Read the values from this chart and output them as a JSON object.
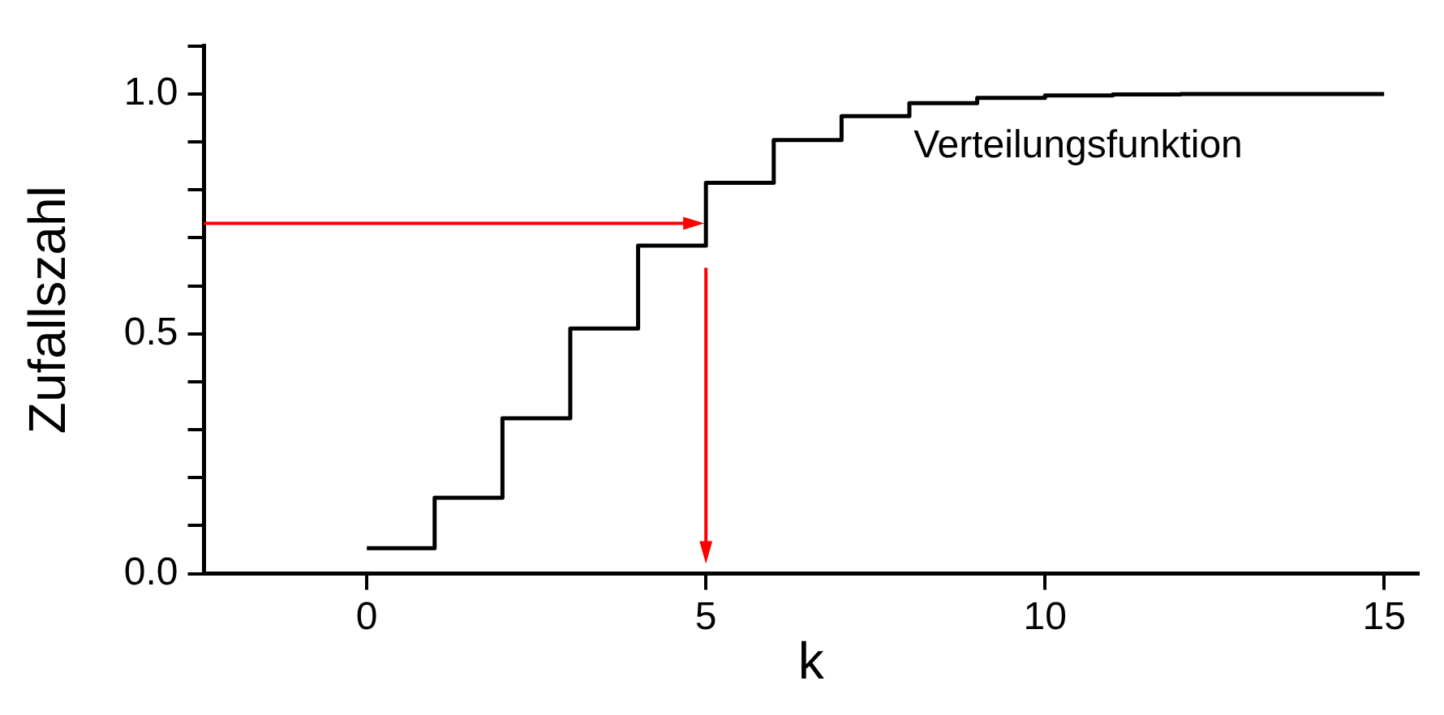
{
  "chart_data": {
    "type": "step",
    "xlabel": "k",
    "ylabel": "Zufallszahl",
    "annotations": [
      "Verteilungsfunktion"
    ],
    "x": [
      0,
      1,
      2,
      3,
      4,
      5,
      6,
      7,
      8,
      9,
      10,
      11,
      12,
      13,
      14,
      15
    ],
    "series": [
      {
        "color": "#000000",
        "values": [
          0.053,
          0.158,
          0.324,
          0.511,
          0.684,
          0.815,
          0.904,
          0.954,
          0.981,
          0.992,
          0.997,
          0.999,
          1.0,
          1.0,
          1.0,
          1.0
        ]
      }
    ],
    "xlim": [
      -2.4,
      15.5
    ],
    "xticks": [
      0,
      5,
      10,
      15
    ],
    "ylim": [
      0,
      1.1
    ],
    "yticks": [
      {
        "value": 0,
        "label": "0.0"
      },
      {
        "value": 0.1,
        "label": null
      },
      {
        "value": 0.2,
        "label": null
      },
      {
        "value": 0.3,
        "label": null
      },
      {
        "value": 0.4,
        "label": null
      },
      {
        "value": 0.5,
        "label": "0.5"
      },
      {
        "value": 0.6,
        "label": null
      },
      {
        "value": 0.7,
        "label": null
      },
      {
        "value": 0.8,
        "label": null
      },
      {
        "value": 0.9,
        "label": null
      },
      {
        "value": 1.0,
        "label": "1.0"
      },
      {
        "value": 1.1,
        "label": null
      }
    ],
    "grid": false,
    "legend": false,
    "marker": "none",
    "line_style": "solid"
  }
}
